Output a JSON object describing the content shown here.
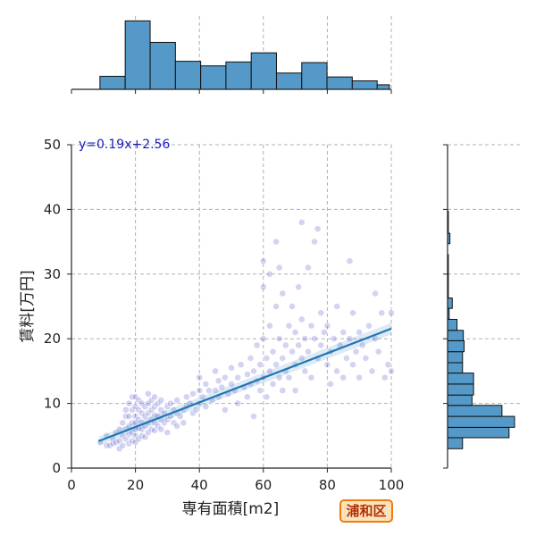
{
  "chart_data": {
    "type": "scatter",
    "xlabel": "専有面積[m2]",
    "ylabel": "賃料[万円]",
    "xlim": [
      0,
      100
    ],
    "ylim": [
      0,
      50
    ],
    "x_ticks": [
      "0",
      "20",
      "40",
      "60",
      "80",
      "100"
    ],
    "y_ticks": [
      "0",
      "10",
      "20",
      "30",
      "40",
      "50"
    ],
    "grid": true,
    "regression": {
      "slope": 0.19,
      "intercept": 2.56,
      "x_range": [
        8.5,
        100
      ],
      "label": "y=0.19x+2.56"
    },
    "x_histogram": {
      "bin_edges": [
        8.9,
        16.8,
        24.6,
        32.5,
        40.4,
        48.3,
        56.2,
        64.1,
        72.0,
        79.9,
        87.8,
        95.6,
        99.4
      ],
      "counts": [
        20,
        105,
        72,
        43,
        36,
        42,
        56,
        25,
        41,
        19,
        13,
        7
      ]
    },
    "y_histogram": {
      "bin_edges": [
        3,
        4.7,
        6.3,
        8,
        9.7,
        11.3,
        13,
        14.7,
        16.3,
        18,
        19.7,
        21.3,
        23,
        24.7,
        26.3,
        28,
        29.7,
        31.3,
        33,
        34.7,
        36.3,
        38,
        39.7
      ],
      "counts": [
        19,
        78,
        85,
        69,
        31,
        33,
        33,
        19,
        19,
        21,
        20,
        12,
        2,
        6,
        1,
        1,
        1,
        1,
        0,
        3,
        1,
        1
      ]
    },
    "series": [
      {
        "points": [
          [
            9,
            4
          ],
          [
            11,
            3.5
          ],
          [
            11,
            5
          ],
          [
            12,
            3.5
          ],
          [
            13,
            4.5
          ],
          [
            13,
            3.8
          ],
          [
            14,
            4
          ],
          [
            14,
            5.5
          ],
          [
            15,
            3
          ],
          [
            15,
            4.2
          ],
          [
            15,
            6
          ],
          [
            16,
            3.5
          ],
          [
            16,
            5
          ],
          [
            16,
            7
          ],
          [
            17,
            4.5
          ],
          [
            17,
            6
          ],
          [
            17,
            8
          ],
          [
            17,
            9
          ],
          [
            18,
            3.8
          ],
          [
            18,
            5.2
          ],
          [
            18,
            6.5
          ],
          [
            18,
            8
          ],
          [
            18,
            10
          ],
          [
            19,
            4.2
          ],
          [
            19,
            5.5
          ],
          [
            19,
            7
          ],
          [
            19,
            9
          ],
          [
            19,
            11
          ],
          [
            20,
            4
          ],
          [
            20,
            5
          ],
          [
            20,
            6
          ],
          [
            20,
            7
          ],
          [
            20,
            8
          ],
          [
            20,
            9.5
          ],
          [
            20,
            11
          ],
          [
            21,
            4.5
          ],
          [
            21,
            6.2
          ],
          [
            21,
            7.5
          ],
          [
            21,
            9
          ],
          [
            21,
            10.5
          ],
          [
            22,
            5
          ],
          [
            22,
            6
          ],
          [
            22,
            7
          ],
          [
            22,
            8.5
          ],
          [
            22,
            10
          ],
          [
            23,
            4.8
          ],
          [
            23,
            6.5
          ],
          [
            23,
            8
          ],
          [
            23,
            9.5
          ],
          [
            24,
            5.5
          ],
          [
            24,
            7
          ],
          [
            24,
            8.5
          ],
          [
            24,
            10
          ],
          [
            24,
            11.5
          ],
          [
            25,
            6
          ],
          [
            25,
            7.5
          ],
          [
            25,
            9
          ],
          [
            25,
            10.5
          ],
          [
            26,
            5.8
          ],
          [
            26,
            7
          ],
          [
            26,
            8.2
          ],
          [
            26,
            9.5
          ],
          [
            26,
            11
          ],
          [
            27,
            6.5
          ],
          [
            27,
            8
          ],
          [
            27,
            10
          ],
          [
            28,
            6
          ],
          [
            28,
            7.5
          ],
          [
            28,
            9
          ],
          [
            28,
            10.5
          ],
          [
            29,
            7
          ],
          [
            29,
            8.5
          ],
          [
            30,
            5.5
          ],
          [
            30,
            7.5
          ],
          [
            30,
            9.5
          ],
          [
            31,
            8
          ],
          [
            31,
            10
          ],
          [
            32,
            7
          ],
          [
            32,
            9
          ],
          [
            33,
            6.5
          ],
          [
            33,
            8.5
          ],
          [
            33,
            10.5
          ],
          [
            34,
            8
          ],
          [
            35,
            9
          ],
          [
            35,
            7
          ],
          [
            36,
            9.5
          ],
          [
            36,
            11
          ],
          [
            37,
            10
          ],
          [
            38,
            8.5
          ],
          [
            38,
            11.5
          ],
          [
            39,
            9
          ],
          [
            40,
            10
          ],
          [
            40,
            12
          ],
          [
            40,
            14
          ],
          [
            41,
            11
          ],
          [
            42,
            9.5
          ],
          [
            42,
            13
          ],
          [
            43,
            12
          ],
          [
            44,
            10.5
          ],
          [
            45,
            12
          ],
          [
            45,
            15
          ],
          [
            46,
            11
          ],
          [
            46,
            13.5
          ],
          [
            47,
            12.5
          ],
          [
            48,
            14
          ],
          [
            48,
            9
          ],
          [
            49,
            11.5
          ],
          [
            50,
            13
          ],
          [
            50,
            15.5
          ],
          [
            51,
            12
          ],
          [
            52,
            14
          ],
          [
            52,
            10
          ],
          [
            53,
            16
          ],
          [
            54,
            12.5
          ],
          [
            55,
            11
          ],
          [
            55,
            14.5
          ],
          [
            56,
            17
          ],
          [
            56,
            13
          ],
          [
            57,
            8
          ],
          [
            57,
            15
          ],
          [
            58,
            13.5
          ],
          [
            58,
            19
          ],
          [
            59,
            12
          ],
          [
            59,
            16
          ],
          [
            60,
            14
          ],
          [
            60,
            20
          ],
          [
            60,
            28
          ],
          [
            60,
            32
          ],
          [
            61,
            17
          ],
          [
            61,
            11
          ],
          [
            62,
            15
          ],
          [
            62,
            22
          ],
          [
            62,
            30
          ],
          [
            63,
            13
          ],
          [
            63,
            18
          ],
          [
            64,
            16
          ],
          [
            64,
            25
          ],
          [
            64,
            35
          ],
          [
            65,
            14
          ],
          [
            65,
            20
          ],
          [
            65,
            31
          ],
          [
            66,
            12
          ],
          [
            66,
            17
          ],
          [
            66,
            27
          ],
          [
            67,
            19
          ],
          [
            67,
            15
          ],
          [
            68,
            22
          ],
          [
            68,
            14
          ],
          [
            69,
            18
          ],
          [
            69,
            25
          ],
          [
            70,
            16
          ],
          [
            70,
            21
          ],
          [
            70,
            12
          ],
          [
            71,
            19
          ],
          [
            71,
            28
          ],
          [
            72,
            23
          ],
          [
            72,
            17
          ],
          [
            72,
            38
          ],
          [
            73,
            15
          ],
          [
            73,
            20
          ],
          [
            74,
            18
          ],
          [
            74,
            31
          ],
          [
            75,
            22
          ],
          [
            75,
            14
          ],
          [
            76,
            20
          ],
          [
            76,
            35
          ],
          [
            77,
            37
          ],
          [
            77,
            17
          ],
          [
            78,
            19
          ],
          [
            78,
            24
          ],
          [
            79,
            21
          ],
          [
            80,
            16
          ],
          [
            80,
            22
          ],
          [
            81,
            18
          ],
          [
            81,
            13
          ],
          [
            82,
            20
          ],
          [
            83,
            25
          ],
          [
            83,
            15
          ],
          [
            84,
            19
          ],
          [
            85,
            21
          ],
          [
            85,
            14
          ],
          [
            86,
            17
          ],
          [
            87,
            32
          ],
          [
            87,
            20
          ],
          [
            88,
            16
          ],
          [
            88,
            24
          ],
          [
            89,
            18
          ],
          [
            90,
            21
          ],
          [
            90,
            14
          ],
          [
            91,
            19
          ],
          [
            92,
            17
          ],
          [
            93,
            22
          ],
          [
            94,
            15
          ],
          [
            95,
            27
          ],
          [
            95,
            20
          ],
          [
            96,
            18
          ],
          [
            97,
            24
          ],
          [
            98,
            14
          ],
          [
            99,
            16
          ],
          [
            100,
            24
          ],
          [
            100,
            15
          ]
        ]
      }
    ]
  },
  "badge": {
    "label": "浦和区"
  },
  "colors": {
    "bar_fill": "#5499c7",
    "points": "#3a3ac4",
    "regression": "#1f77b4",
    "grid": "#b0b0b0"
  }
}
